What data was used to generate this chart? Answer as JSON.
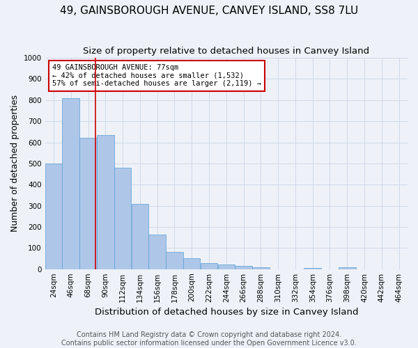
{
  "title": "49, GAINSBOROUGH AVENUE, CANVEY ISLAND, SS8 7LU",
  "subtitle": "Size of property relative to detached houses in Canvey Island",
  "xlabel": "Distribution of detached houses by size in Canvey Island",
  "ylabel": "Number of detached properties",
  "footer_line1": "Contains HM Land Registry data © Crown copyright and database right 2024.",
  "footer_line2": "Contains public sector information licensed under the Open Government Licence v3.0.",
  "annotation_line1": "49 GAINSBOROUGH AVENUE: 77sqm",
  "annotation_line2": "← 42% of detached houses are smaller (1,532)",
  "annotation_line3": "57% of semi-detached houses are larger (2,119) →",
  "property_size_sqm": 77,
  "categories": [
    "24sqm",
    "46sqm",
    "68sqm",
    "90sqm",
    "112sqm",
    "134sqm",
    "156sqm",
    "178sqm",
    "200sqm",
    "222sqm",
    "244sqm",
    "266sqm",
    "288sqm",
    "310sqm",
    "332sqm",
    "354sqm",
    "376sqm",
    "398sqm",
    "420sqm",
    "442sqm",
    "464sqm"
  ],
  "bin_edges_sqm": [
    13,
    35,
    57,
    79,
    101,
    123,
    145,
    167,
    189,
    211,
    233,
    255,
    277,
    299,
    321,
    343,
    365,
    387,
    409,
    431,
    453,
    475
  ],
  "values": [
    500,
    810,
    620,
    635,
    480,
    310,
    165,
    80,
    50,
    27,
    23,
    15,
    10,
    0,
    0,
    5,
    0,
    10,
    0,
    0,
    0
  ],
  "bar_color": "#aec6e8",
  "bar_edge_color": "#5a9fd4",
  "grid_color": "#d0d8e8",
  "background_color": "#eef2f8",
  "vline_color": "#cc0000",
  "annotation_box_color": "#cc0000",
  "annotation_text_color": "#000000",
  "ylim": [
    0,
    1000
  ],
  "yticks": [
    0,
    100,
    200,
    300,
    400,
    500,
    600,
    700,
    800,
    900,
    1000
  ],
  "title_fontsize": 11,
  "subtitle_fontsize": 9.5,
  "xlabel_fontsize": 9.5,
  "ylabel_fontsize": 9,
  "tick_fontsize": 7.5,
  "annotation_fontsize": 7.5,
  "footer_fontsize": 7
}
